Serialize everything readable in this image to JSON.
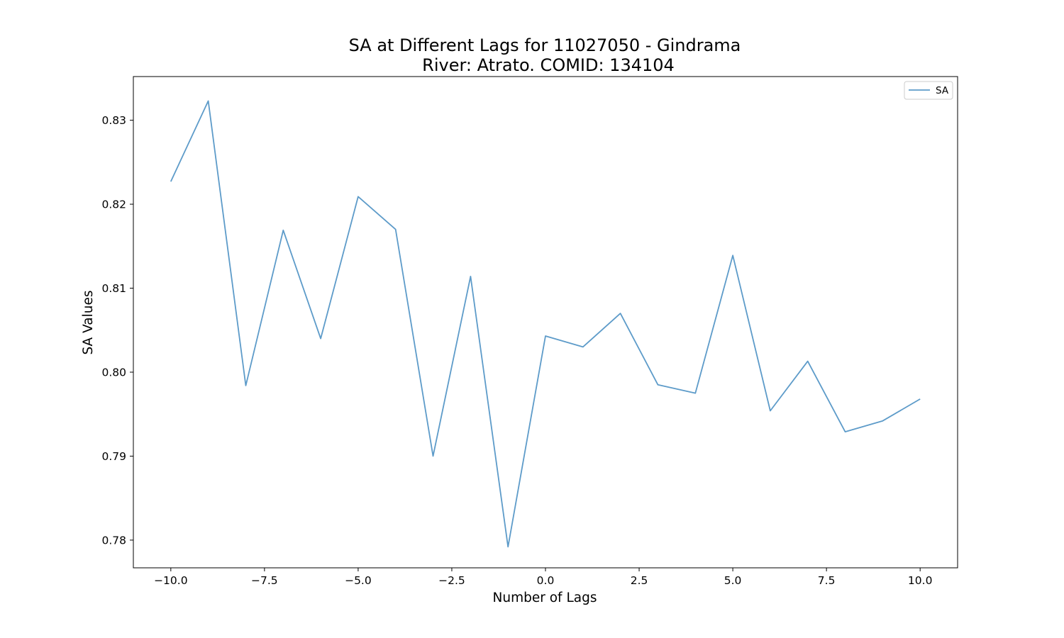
{
  "chart_data": {
    "type": "line",
    "title": "SA at Different Lags for 11027050 - Gindrama\nRiver: Atrato. COMID: 134104",
    "title_lines": [
      "SA at Different Lags for 11027050 - Gindrama",
      "River: Atrato. COMID: 134104"
    ],
    "xlabel": "Number of Lags",
    "ylabel": "SA Values",
    "xlim": [
      -11.0,
      11.0
    ],
    "ylim": [
      0.7767,
      0.8352
    ],
    "x_ticks": [
      -10.0,
      -7.5,
      -5.0,
      -2.5,
      0.0,
      2.5,
      5.0,
      7.5,
      10.0
    ],
    "x_tick_labels": [
      "−10.0",
      "−7.5",
      "−5.0",
      "−2.5",
      "0.0",
      "2.5",
      "5.0",
      "7.5",
      "10.0"
    ],
    "y_ticks": [
      0.78,
      0.79,
      0.8,
      0.81,
      0.82,
      0.83
    ],
    "y_tick_labels": [
      "0.78",
      "0.79",
      "0.80",
      "0.81",
      "0.82",
      "0.83"
    ],
    "grid": false,
    "legend_position": "top-right",
    "series": [
      {
        "name": "SA",
        "color": "#5d9bc9",
        "x": [
          -10,
          -9,
          -8,
          -7,
          -6,
          -5,
          -4,
          -3,
          -2,
          -1,
          0,
          1,
          2,
          3,
          4,
          5,
          6,
          7,
          8,
          9,
          10
        ],
        "values": [
          0.8227,
          0.8323,
          0.7984,
          0.8169,
          0.804,
          0.8209,
          0.817,
          0.79,
          0.8114,
          0.7792,
          0.8043,
          0.803,
          0.807,
          0.7985,
          0.7975,
          0.8139,
          0.7954,
          0.8013,
          0.7929,
          0.7942,
          0.7968
        ]
      }
    ]
  }
}
